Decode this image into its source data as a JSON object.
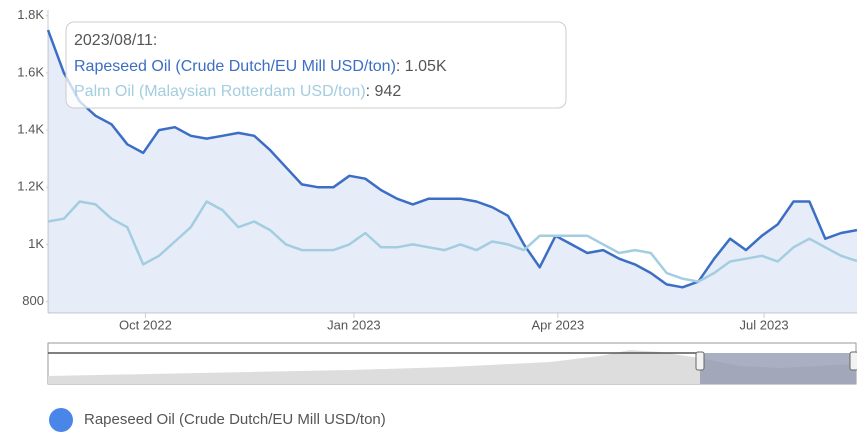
{
  "chart_data": {
    "type": "line",
    "x": [
      "2022-08-19",
      "2022-08-26",
      "2022-09-02",
      "2022-09-09",
      "2022-09-16",
      "2022-09-23",
      "2022-09-30",
      "2022-10-07",
      "2022-10-14",
      "2022-10-21",
      "2022-10-28",
      "2022-11-04",
      "2022-11-11",
      "2022-11-18",
      "2022-11-25",
      "2022-12-02",
      "2022-12-09",
      "2022-12-16",
      "2022-12-23",
      "2022-12-30",
      "2023-01-06",
      "2023-01-13",
      "2023-01-20",
      "2023-01-27",
      "2023-02-03",
      "2023-02-10",
      "2023-02-17",
      "2023-02-24",
      "2023-03-03",
      "2023-03-10",
      "2023-03-17",
      "2023-03-24",
      "2023-03-31",
      "2023-04-07",
      "2023-04-14",
      "2023-04-21",
      "2023-04-28",
      "2023-05-05",
      "2023-05-12",
      "2023-05-19",
      "2023-05-26",
      "2023-06-02",
      "2023-06-09",
      "2023-06-16",
      "2023-06-23",
      "2023-06-30",
      "2023-07-07",
      "2023-07-14",
      "2023-07-21",
      "2023-07-28",
      "2023-08-04",
      "2023-08-11"
    ],
    "series": [
      {
        "name": "Rapeseed Oil (Crude Dutch/EU Mill USD/ton)",
        "color": "#3b6ec4",
        "fill": true,
        "values": [
          1750,
          1600,
          1500,
          1450,
          1420,
          1350,
          1320,
          1400,
          1410,
          1380,
          1370,
          1380,
          1390,
          1380,
          1330,
          1270,
          1210,
          1200,
          1200,
          1240,
          1230,
          1190,
          1160,
          1140,
          1160,
          1160,
          1160,
          1150,
          1130,
          1100,
          1000,
          920,
          1030,
          1000,
          970,
          980,
          950,
          930,
          900,
          860,
          850,
          870,
          950,
          1020,
          980,
          1030,
          1070,
          1150,
          1150,
          1020,
          1040,
          1050
        ]
      },
      {
        "name": "Palm Oil (Malaysian Rotterdam USD/ton)",
        "color": "#a3cde0",
        "fill": false,
        "values": [
          1080,
          1090,
          1150,
          1140,
          1090,
          1060,
          930,
          960,
          1010,
          1060,
          1150,
          1120,
          1060,
          1080,
          1050,
          1000,
          980,
          980,
          980,
          1000,
          1040,
          990,
          990,
          1000,
          990,
          980,
          1000,
          980,
          1010,
          1000,
          980,
          1030,
          1030,
          1030,
          1030,
          1000,
          970,
          980,
          970,
          900,
          880,
          870,
          900,
          940,
          950,
          960,
          940,
          990,
          1020,
          990,
          960,
          942
        ]
      }
    ],
    "xlim": [
      "2022-08-19",
      "2023-08-11"
    ],
    "xticks": [
      {
        "value": "2022-10-01",
        "label": "Oct 2022"
      },
      {
        "value": "2023-01-01",
        "label": "Jan 2023"
      },
      {
        "value": "2023-04-01",
        "label": "Apr 2023"
      },
      {
        "value": "2023-07-01",
        "label": "Jul 2023"
      }
    ],
    "ylim": [
      760,
      1820
    ],
    "yticks": [
      800,
      {
        "value": 1000,
        "label": "1K"
      },
      {
        "value": 1200,
        "label": "1.2K"
      },
      {
        "value": 1400,
        "label": "1.4K"
      },
      {
        "value": 1600,
        "label": "1.6K"
      },
      {
        "value": 1800,
        "label": "1.8K"
      }
    ],
    "tooltip": {
      "title": "2023/08/11:",
      "separator": ":",
      "values": [
        "1.05K",
        "942"
      ]
    },
    "legend": [
      0
    ]
  }
}
